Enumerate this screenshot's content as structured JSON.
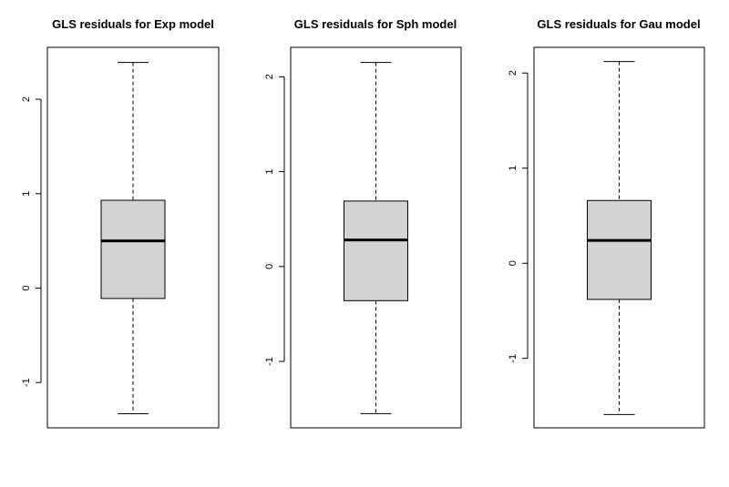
{
  "chart_data": [
    {
      "type": "boxplot",
      "title": "GLS residuals for Exp model",
      "xlabel": "",
      "ylabel": "",
      "ylim": [
        -1.48,
        2.55
      ],
      "yticks": [
        -1,
        0,
        1,
        2
      ],
      "ytick_labels": [
        "-1",
        "0",
        "1",
        "2"
      ],
      "grid": false,
      "box_fill": "#d3d3d3",
      "stats": {
        "min": -1.33,
        "q1": -0.11,
        "median": 0.5,
        "q3": 0.93,
        "max": 2.39
      }
    },
    {
      "type": "boxplot",
      "title": "GLS residuals for Sph model",
      "xlabel": "",
      "ylabel": "",
      "ylim": [
        -1.7,
        2.31
      ],
      "yticks": [
        -1,
        0,
        1,
        2
      ],
      "ytick_labels": [
        "-1",
        "0",
        "1",
        "2"
      ],
      "grid": false,
      "box_fill": "#d3d3d3",
      "stats": {
        "min": -1.55,
        "q1": -0.36,
        "median": 0.28,
        "q3": 0.69,
        "max": 2.15
      }
    },
    {
      "type": "boxplot",
      "title": "GLS residuals for Gau model",
      "xlabel": "",
      "ylabel": "",
      "ylim": [
        -1.73,
        2.27
      ],
      "yticks": [
        -1,
        0,
        1,
        2
      ],
      "ytick_labels": [
        "-1",
        "0",
        "1",
        "2"
      ],
      "grid": false,
      "box_fill": "#d3d3d3",
      "stats": {
        "min": -1.59,
        "q1": -0.38,
        "median": 0.24,
        "q3": 0.66,
        "max": 2.12
      }
    }
  ]
}
